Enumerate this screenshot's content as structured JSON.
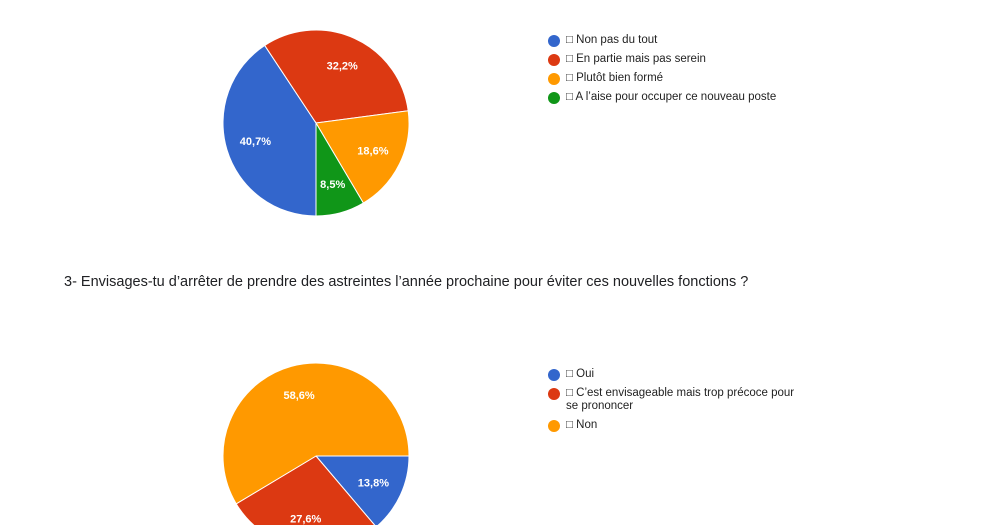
{
  "question": {
    "text": "3- Envisages-tu d’arrêter de prendre des astreintes l’année prochaine pour éviter ces nouvelles fonctions ?"
  },
  "chart_data": [
    {
      "type": "pie",
      "title": "",
      "categories": [
        "□ Non pas du tout",
        "□ En partie mais pas serein",
        "□ Plutôt bien formé",
        "□ A l’aise pour occuper ce nouveau poste"
      ],
      "values": [
        40.7,
        32.2,
        18.6,
        8.5
      ],
      "labels": [
        "40,7%",
        "32,2%",
        "18,6%",
        "8,5%"
      ],
      "colors": [
        "#3366cc",
        "#dc3912",
        "#ff9900",
        "#109618"
      ],
      "legend_position": "right"
    },
    {
      "type": "pie",
      "title": "",
      "categories": [
        "□ Oui",
        "□ C’est envisageable mais trop précoce pour se prononcer",
        "□ Non"
      ],
      "values": [
        13.8,
        27.6,
        58.6
      ],
      "labels": [
        "13,8%",
        "27,6%",
        "58,6%"
      ],
      "colors": [
        "#3366cc",
        "#dc3912",
        "#ff9900"
      ],
      "legend_position": "right"
    }
  ]
}
